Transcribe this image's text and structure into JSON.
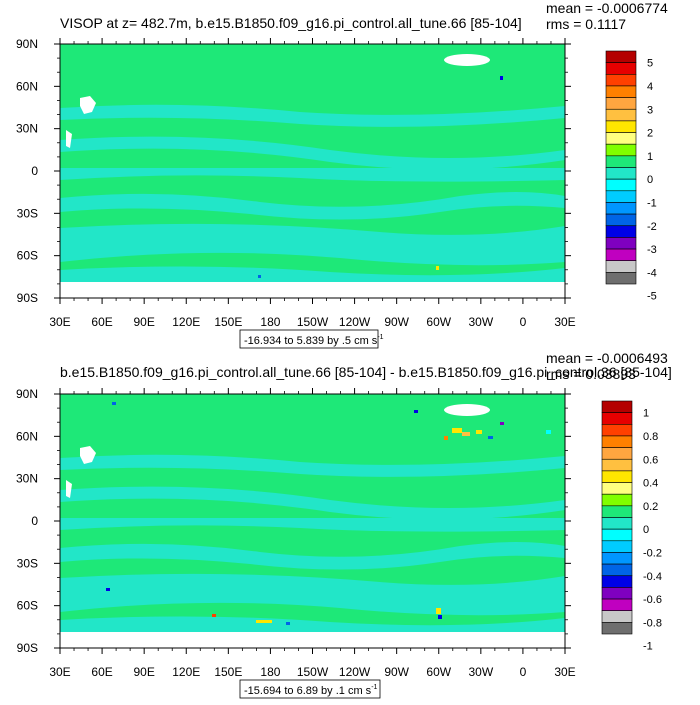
{
  "colors": {
    "ocean_main": "#1ee878",
    "ocean_alt": "#22e6c8",
    "land": "#ffffff",
    "frame": "#000000"
  },
  "chart_data": [
    {
      "type": "heatmap",
      "title": "VISOP at z= 482.7m, b.e15.B1850.f09_g16.pi_control.all_tune.66 [85-104]",
      "stats": {
        "mean": "mean = -0.0006774",
        "rms": "rms = 0.1117"
      },
      "x_ticks": [
        "30E",
        "60E",
        "90E",
        "120E",
        "150E",
        "180",
        "150W",
        "120W",
        "90W",
        "60W",
        "30W",
        "0",
        "30E"
      ],
      "y_ticks": [
        "90N",
        "60N",
        "30N",
        "0",
        "30S",
        "60S",
        "90S"
      ],
      "xlim": [
        30,
        390
      ],
      "ylim": [
        -90,
        90
      ],
      "range_label": "-16.934 to 5.839 by .5 cm s",
      "range_unit_exp": "-1",
      "colorbar": {
        "labels": [
          "5",
          "4",
          "3",
          "2",
          "1",
          "0",
          "-1",
          "-2",
          "-3",
          "-4",
          "-5"
        ],
        "colors": [
          "#b40000",
          "#e60000",
          "#ff4000",
          "#ff8000",
          "#ffa640",
          "#ffc040",
          "#ffe600",
          "#ffff80",
          "#80ff00",
          "#1ee878",
          "#22e6c8",
          "#00ffff",
          "#00ccff",
          "#0096ff",
          "#0064e6",
          "#0000e6",
          "#7f00c0",
          "#c000c0",
          "#c8c8c8",
          "#6e6e6e"
        ]
      }
    },
    {
      "type": "heatmap",
      "title": "b.e15.B1850.f09_g16.pi_control.all_tune.66 [85-104] - b.e15.B1850.f09_g16.pi_control.36 [85-104]",
      "stats": {
        "mean": "mean = -0.0006493",
        "rms": "rms = 0.03893"
      },
      "x_ticks": [
        "30E",
        "60E",
        "90E",
        "120E",
        "150E",
        "180",
        "150W",
        "120W",
        "90W",
        "60W",
        "30W",
        "0",
        "30E"
      ],
      "y_ticks": [
        "90N",
        "60N",
        "30N",
        "0",
        "30S",
        "60S",
        "90S"
      ],
      "xlim": [
        30,
        390
      ],
      "ylim": [
        -90,
        90
      ],
      "range_label": "-15.694 to 6.89 by .1 cm s",
      "range_unit_exp": "-1",
      "colorbar": {
        "labels": [
          "1",
          "0.8",
          "0.6",
          "0.4",
          "0.2",
          "0",
          "-0.2",
          "-0.4",
          "-0.6",
          "-0.8",
          "-1"
        ],
        "colors": [
          "#b40000",
          "#e60000",
          "#ff4000",
          "#ff8000",
          "#ffa640",
          "#ffc040",
          "#ffe600",
          "#ffff80",
          "#80ff00",
          "#1ee878",
          "#22e6c8",
          "#00ffff",
          "#00ccff",
          "#0096ff",
          "#0064e6",
          "#0000e6",
          "#7f00c0",
          "#c000c0",
          "#c8c8c8",
          "#6e6e6e"
        ]
      }
    }
  ]
}
